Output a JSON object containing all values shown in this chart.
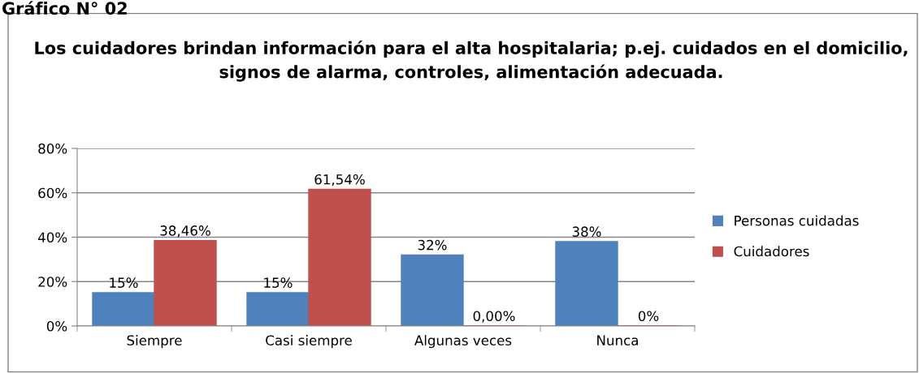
{
  "chart_data": {
    "type": "bar",
    "title": "Los cuidadores brindan información para el alta hospitalaria; p.ej. cuidados en el domicilio, signos de alarma, controles, alimentación adecuada.",
    "categories": [
      "Siempre",
      "Casi siempre",
      "Algunas veces",
      "Nunca"
    ],
    "series": [
      {
        "name": "Personas cuidadas",
        "color": "#4f81bd",
        "values": [
          15,
          15,
          32,
          38
        ],
        "value_labels": [
          "15%",
          "15%",
          "32%",
          "38%"
        ]
      },
      {
        "name": "Cuidadores",
        "color": "#c0504d",
        "values": [
          38.46,
          61.54,
          0,
          0
        ],
        "value_labels": [
          "38,46%",
          "61,54%",
          "0,00%",
          "0%"
        ]
      }
    ],
    "ylim": [
      0,
      80
    ],
    "yticks": [
      {
        "value": 0,
        "label": "0%"
      },
      {
        "value": 20,
        "label": "20%"
      },
      {
        "value": 40,
        "label": "40%"
      },
      {
        "value": 60,
        "label": "60%"
      },
      {
        "value": 80,
        "label": "80%"
      }
    ],
    "grid": "y",
    "legend": "right",
    "annotations": [
      "Gráfico N° 02"
    ]
  }
}
